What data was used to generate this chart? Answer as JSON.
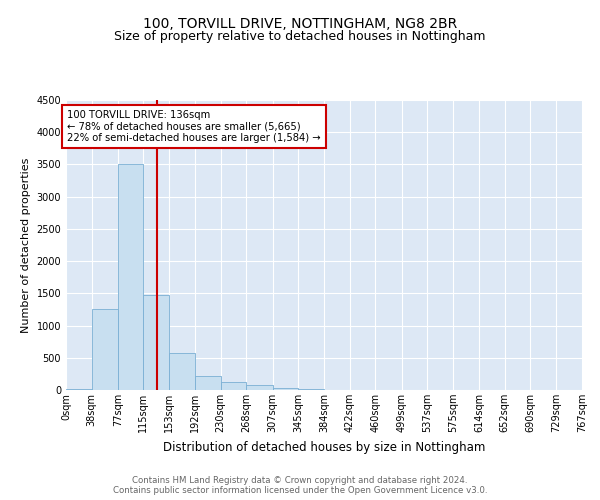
{
  "title": "100, TORVILL DRIVE, NOTTINGHAM, NG8 2BR",
  "subtitle": "Size of property relative to detached houses in Nottingham",
  "xlabel": "Distribution of detached houses by size in Nottingham",
  "ylabel": "Number of detached properties",
  "bar_color": "#c8dff0",
  "bar_edge_color": "#7aafd4",
  "vline_x": 136,
  "vline_color": "#cc0000",
  "annotation_title": "100 TORVILL DRIVE: 136sqm",
  "annotation_line1": "← 78% of detached houses are smaller (5,665)",
  "annotation_line2": "22% of semi-detached houses are larger (1,584) →",
  "annotation_box_color": "#cc0000",
  "bins": [
    0,
    38,
    77,
    115,
    153,
    192,
    230,
    268,
    307,
    345,
    384,
    422,
    460,
    499,
    537,
    575,
    614,
    652,
    690,
    729,
    767
  ],
  "bin_labels": [
    "0sqm",
    "38sqm",
    "77sqm",
    "115sqm",
    "153sqm",
    "192sqm",
    "230sqm",
    "268sqm",
    "307sqm",
    "345sqm",
    "384sqm",
    "422sqm",
    "460sqm",
    "499sqm",
    "537sqm",
    "575sqm",
    "614sqm",
    "652sqm",
    "690sqm",
    "729sqm",
    "767sqm"
  ],
  "bar_heights": [
    10,
    1250,
    3500,
    1480,
    580,
    220,
    120,
    75,
    35,
    10,
    5,
    3,
    3,
    2,
    1,
    0,
    1,
    0,
    0,
    0
  ],
  "ylim": [
    0,
    4500
  ],
  "yticks": [
    0,
    500,
    1000,
    1500,
    2000,
    2500,
    3000,
    3500,
    4000,
    4500
  ],
  "background_color": "#dde8f5",
  "footer_line1": "Contains HM Land Registry data © Crown copyright and database right 2024.",
  "footer_line2": "Contains public sector information licensed under the Open Government Licence v3.0.",
  "title_fontsize": 10,
  "subtitle_fontsize": 9,
  "tick_fontsize": 7,
  "ylabel_fontsize": 8,
  "xlabel_fontsize": 8.5
}
